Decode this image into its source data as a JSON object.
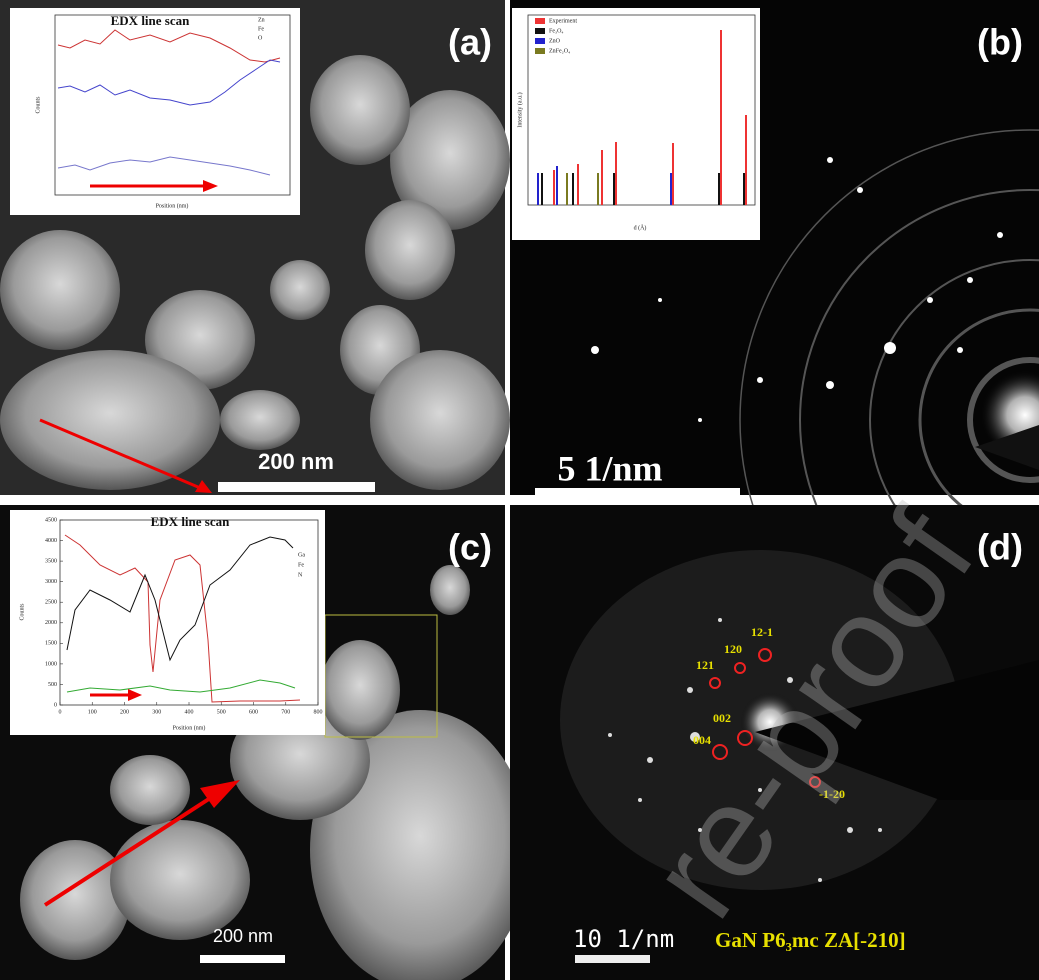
{
  "watermark": "re-proof",
  "panels": [
    {
      "label": "(a)",
      "scale_bar": "200 nm",
      "inset": {
        "title": "EDX line scan",
        "legend": [
          "Zn",
          "Fe",
          "O"
        ],
        "x_label": "Position (nm)",
        "y_label": "Counts"
      }
    },
    {
      "label": "(b)",
      "scale_bar": "5 1/nm",
      "inset": {
        "legend": [
          "Experiment",
          "Fe₃O₄",
          "ZnO",
          "ZnFe₂O₄"
        ],
        "x_label": "d (Å)",
        "y_label": "Intensity (a.u.)"
      }
    },
    {
      "label": "(c)",
      "scale_bar": "200 nm",
      "inset": {
        "title": "EDX line scan",
        "legend": [
          "Ga",
          "Fe",
          "N"
        ],
        "x_label": "Position (nm)",
        "y_label": "Counts",
        "xticks": [
          0,
          100,
          200,
          300,
          400,
          500,
          600,
          700,
          800
        ],
        "yticks": [
          0,
          500,
          1000,
          1500,
          2000,
          2500,
          3000,
          3500,
          4000,
          4500
        ]
      }
    },
    {
      "label": "(d)",
      "scale_bar": "10 1/nm",
      "caption": "GaN P6₃mc ZA[-210]",
      "spots": [
        "12-1",
        "120",
        "121",
        "002",
        "004",
        "-1-20"
      ]
    }
  ]
}
